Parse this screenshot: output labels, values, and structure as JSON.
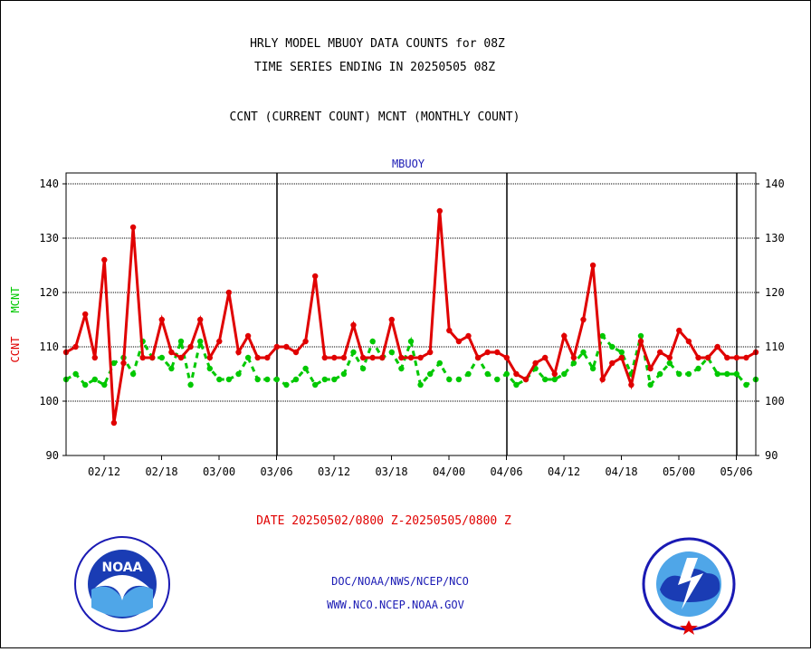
{
  "header": {
    "title_line1": "HRLY MODEL MBUOY DATA COUNTS for 08Z",
    "title_line2": "TIME SERIES ENDING IN 20250505 08Z",
    "title_line3": "CCNT (CURRENT COUNT) MCNT (MONTHLY COUNT)"
  },
  "chart_data": {
    "type": "line",
    "title": "MBUOY",
    "ylabel_ccnt": "CCNT",
    "ylabel_mcnt": "MCNT",
    "xlabel": "DATE 20250502/0800 Z-20250505/0800 Z",
    "ylim": [
      90,
      140
    ],
    "yticks": [
      90,
      100,
      110,
      120,
      130,
      140
    ],
    "xtick_labels": [
      "02/12",
      "02/18",
      "03/00",
      "03/06",
      "03/12",
      "03/18",
      "04/00",
      "04/06",
      "04/12",
      "04/18",
      "05/00",
      "05/06"
    ],
    "grid": "horizontal",
    "series": [
      {
        "name": "CCNT",
        "color": "#e00000",
        "values": [
          109,
          110,
          116,
          108,
          126,
          96,
          107,
          132,
          108,
          108,
          115,
          109,
          108,
          110,
          115,
          108,
          111,
          120,
          109,
          112,
          108,
          108,
          110,
          110,
          109,
          111,
          123,
          108,
          108,
          108,
          114,
          108,
          108,
          108,
          115,
          108,
          108,
          108,
          109,
          135,
          113,
          111,
          112,
          108,
          109,
          109,
          108,
          105,
          104,
          107,
          108,
          105,
          112,
          108,
          115,
          125,
          104,
          107,
          108,
          103,
          111,
          106,
          109,
          108,
          113,
          111,
          108,
          108,
          110,
          108,
          108,
          108,
          109
        ]
      },
      {
        "name": "MCNT",
        "color": "#00c800",
        "values": [
          104,
          105,
          103,
          104,
          103,
          107,
          108,
          105,
          111,
          108,
          108,
          106,
          111,
          103,
          111,
          106,
          104,
          104,
          105,
          108,
          104,
          104,
          104,
          103,
          104,
          106,
          103,
          104,
          104,
          105,
          109,
          106,
          111,
          108,
          109,
          106,
          111,
          103,
          105,
          107,
          104,
          104,
          105,
          108,
          105,
          104,
          105,
          103,
          104,
          106,
          104,
          104,
          105,
          107,
          109,
          106,
          112,
          110,
          109,
          105,
          112,
          103,
          105,
          107,
          105,
          105,
          106,
          108,
          105,
          105,
          105,
          103,
          104
        ]
      }
    ]
  },
  "footer": {
    "link1": "DOC/NOAA/NWS/NCEP/NCO",
    "link2": "WWW.NCO.NCEP.NOAA.GOV",
    "noaa_logo_text": "NOAA",
    "noaa_ring_text": "NATIONAL OCEANIC AND ATMOSPHERIC ADMINISTRATION · U.S. DEPARTMENT OF COMMERCE",
    "nws_ring_text": "NATIONAL WEATHER SERVICE"
  }
}
